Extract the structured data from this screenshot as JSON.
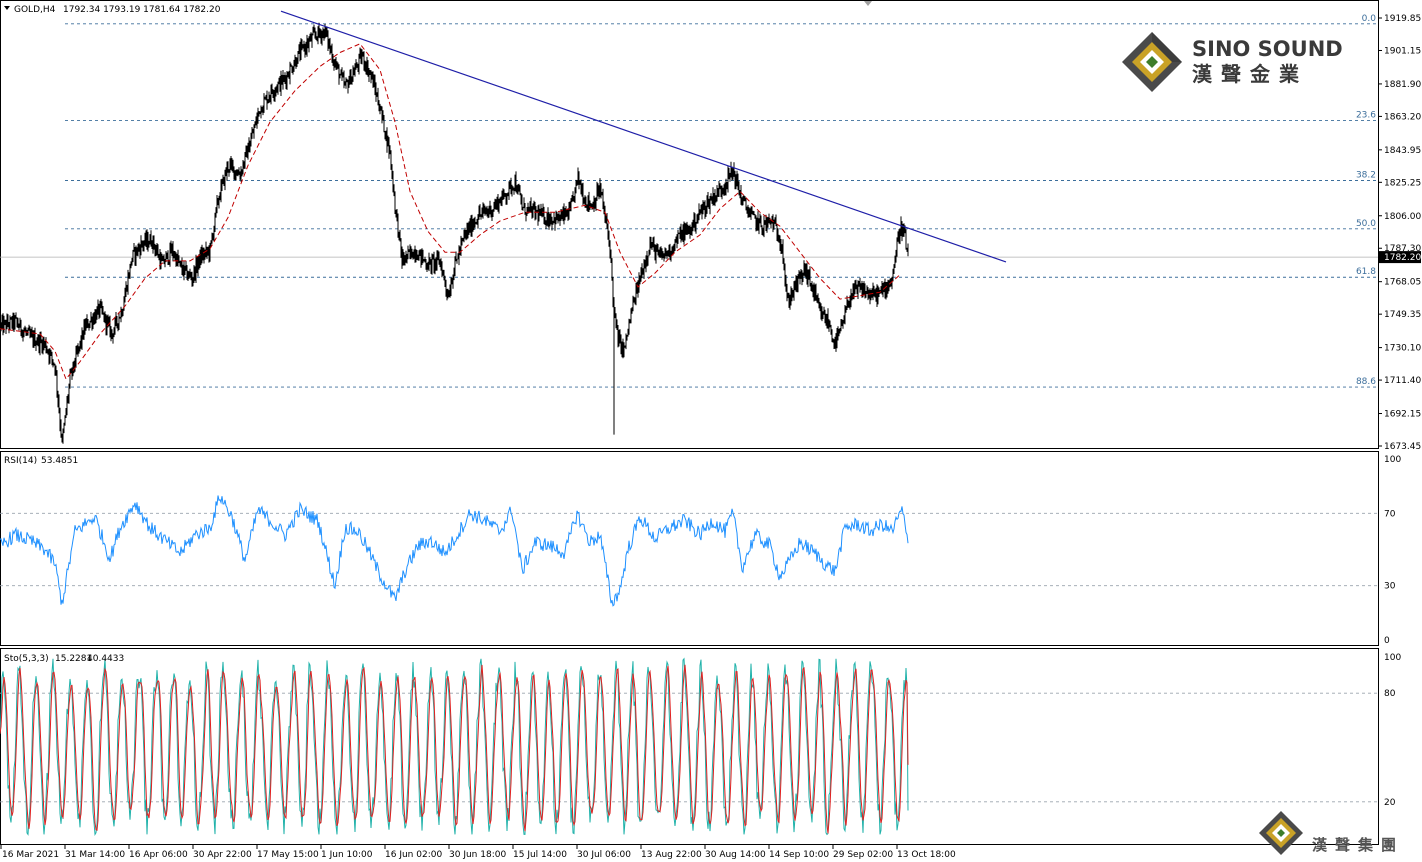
{
  "colors": {
    "price": "#000000",
    "ma": "#c00000",
    "trendline": "#1f1fa8",
    "fib": "#3c6e9b",
    "rsi": "#1e90ff",
    "sto_main": "#20b2aa",
    "sto_signal": "#e02020",
    "grid": "#9aa4ad",
    "current_price_bg": "#000000",
    "brand_gold": "#c9a227",
    "brand_green": "#3e7d2a"
  },
  "header": {
    "symbol": "GOLD,H4",
    "ohlc": "1792.34 1793.19 1781.64 1782.20"
  },
  "brand": {
    "name_en": "SINO SOUND",
    "name_zh": "漢聲金業",
    "footer_zh": "漢聲集團",
    "logo_icon": "diamond-logo-icon"
  },
  "chart_data": [
    {
      "type": "line",
      "name_label": "GOLD,H4",
      "ylim": [
        1673.45,
        1919.85
      ],
      "y_ticks": [
        "1919.85",
        "1901.15",
        "1881.90",
        "1863.20",
        "1843.95",
        "1825.25",
        "1806.00",
        "1787.30",
        "1768.05",
        "1749.35",
        "1730.10",
        "1711.40",
        "1692.15",
        "1673.45"
      ],
      "current_price": "1782.20",
      "x_ticks": [
        "16 Mar 2021",
        "31 Mar 14:00",
        "16 Apr 06:00",
        "30 Apr 22:00",
        "17 May 15:00",
        "1 Jun 10:00",
        "16 Jun 02:00",
        "30 Jun 18:00",
        "15 Jul 14:00",
        "30 Jul 06:00",
        "13 Aug 22:00",
        "30 Aug 14:00",
        "14 Sep 10:00",
        "29 Sep 02:00",
        "13 Oct 18:00"
      ],
      "fib_levels": [
        {
          "label": "0.0",
          "price": 1916.5
        },
        {
          "label": "23.6",
          "price": 1860.9
        },
        {
          "label": "38.2",
          "price": 1826.3
        },
        {
          "label": "50.0",
          "price": 1798.5
        },
        {
          "label": "61.8",
          "price": 1770.6
        },
        {
          "label": "88.6",
          "price": 1707.4
        }
      ],
      "trendline": {
        "start": {
          "bar": 281,
          "price": 1923.8
        },
        "end": {
          "bar": 1006,
          "price": 1779.4
        }
      },
      "series": [
        {
          "key": "close",
          "points": [
            [
              0,
              1742
            ],
            [
              15,
              1745
            ],
            [
              30,
              1736
            ],
            [
              45,
              1732
            ],
            [
              55,
              1720
            ],
            [
              62,
              1675
            ],
            [
              70,
              1712
            ],
            [
              85,
              1742
            ],
            [
              100,
              1752
            ],
            [
              112,
              1738
            ],
            [
              122,
              1752
            ],
            [
              132,
              1782
            ],
            [
              142,
              1790
            ],
            [
              152,
              1792
            ],
            [
              162,
              1778
            ],
            [
              172,
              1786
            ],
            [
              182,
              1775
            ],
            [
              192,
              1770
            ],
            [
              200,
              1782
            ],
            [
              210,
              1786
            ],
            [
              218,
              1815
            ],
            [
              228,
              1835
            ],
            [
              240,
              1830
            ],
            [
              250,
              1848
            ],
            [
              260,
              1868
            ],
            [
              272,
              1878
            ],
            [
              285,
              1885
            ],
            [
              300,
              1900
            ],
            [
              315,
              1910
            ],
            [
              325,
              1912
            ],
            [
              334,
              1895
            ],
            [
              345,
              1880
            ],
            [
              355,
              1890
            ],
            [
              362,
              1898
            ],
            [
              372,
              1885
            ],
            [
              380,
              1868
            ],
            [
              390,
              1842
            ],
            [
              395,
              1812
            ],
            [
              402,
              1780
            ],
            [
              415,
              1786
            ],
            [
              428,
              1778
            ],
            [
              440,
              1780
            ],
            [
              448,
              1760
            ],
            [
              455,
              1778
            ],
            [
              465,
              1795
            ],
            [
              478,
              1806
            ],
            [
              492,
              1810
            ],
            [
              505,
              1818
            ],
            [
              515,
              1826
            ],
            [
              523,
              1810
            ],
            [
              535,
              1808
            ],
            [
              545,
              1805
            ],
            [
              558,
              1804
            ],
            [
              570,
              1808
            ],
            [
              578,
              1828
            ],
            [
              585,
              1815
            ],
            [
              592,
              1812
            ],
            [
              600,
              1822
            ],
            [
              605,
              1805
            ],
            [
              610,
              1788
            ],
            [
              614,
              1750
            ],
            [
              618,
              1735
            ],
            [
              624,
              1728
            ],
            [
              632,
              1752
            ],
            [
              640,
              1770
            ],
            [
              650,
              1790
            ],
            [
              660,
              1782
            ],
            [
              670,
              1786
            ],
            [
              680,
              1795
            ],
            [
              690,
              1798
            ],
            [
              700,
              1808
            ],
            [
              710,
              1815
            ],
            [
              722,
              1822
            ],
            [
              733,
              1832
            ],
            [
              742,
              1815
            ],
            [
              752,
              1805
            ],
            [
              762,
              1800
            ],
            [
              772,
              1803
            ],
            [
              782,
              1790
            ],
            [
              787,
              1756
            ],
            [
              795,
              1765
            ],
            [
              805,
              1775
            ],
            [
              812,
              1765
            ],
            [
              820,
              1750
            ],
            [
              828,
              1745
            ],
            [
              835,
              1732
            ],
            [
              842,
              1742
            ],
            [
              850,
              1760
            ],
            [
              860,
              1764
            ],
            [
              872,
              1760
            ],
            [
              882,
              1762
            ],
            [
              892,
              1770
            ],
            [
              900,
              1800
            ],
            [
              904,
              1796
            ],
            [
              908,
              1782
            ]
          ]
        },
        {
          "key": "ma",
          "points": [
            [
              0,
              1741
            ],
            [
              40,
              1738
            ],
            [
              55,
              1728
            ],
            [
              66,
              1712
            ],
            [
              80,
              1722
            ],
            [
              100,
              1738
            ],
            [
              125,
              1754
            ],
            [
              145,
              1770
            ],
            [
              165,
              1780
            ],
            [
              190,
              1780
            ],
            [
              210,
              1787
            ],
            [
              228,
              1805
            ],
            [
              248,
              1835
            ],
            [
              270,
              1860
            ],
            [
              295,
              1878
            ],
            [
              320,
              1892
            ],
            [
              340,
              1900
            ],
            [
              360,
              1905
            ],
            [
              380,
              1890
            ],
            [
              395,
              1860
            ],
            [
              410,
              1820
            ],
            [
              428,
              1797
            ],
            [
              445,
              1785
            ],
            [
              460,
              1785
            ],
            [
              480,
              1795
            ],
            [
              500,
              1803
            ],
            [
              525,
              1808
            ],
            [
              555,
              1808
            ],
            [
              585,
              1812
            ],
            [
              605,
              1808
            ],
            [
              620,
              1785
            ],
            [
              638,
              1765
            ],
            [
              655,
              1773
            ],
            [
              675,
              1785
            ],
            [
              700,
              1795
            ],
            [
              720,
              1810
            ],
            [
              740,
              1820
            ],
            [
              760,
              1808
            ],
            [
              780,
              1800
            ],
            [
              800,
              1785
            ],
            [
              820,
              1770
            ],
            [
              840,
              1758
            ],
            [
              860,
              1760
            ],
            [
              880,
              1762
            ],
            [
              900,
              1772
            ]
          ]
        }
      ]
    },
    {
      "type": "line",
      "name_label": "RSI(14)",
      "current_value": "53.4851",
      "ylim": [
        0,
        100
      ],
      "y_ticks": [
        "100",
        "70",
        "30",
        "0"
      ],
      "levels": [
        70,
        30
      ],
      "series": [
        {
          "key": "rsi",
          "points": [
            [
              0,
              52
            ],
            [
              15,
              58
            ],
            [
              30,
              55
            ],
            [
              45,
              50
            ],
            [
              55,
              42
            ],
            [
              62,
              20
            ],
            [
              75,
              60
            ],
            [
              95,
              68
            ],
            [
              110,
              45
            ],
            [
              120,
              62
            ],
            [
              135,
              76
            ],
            [
              150,
              62
            ],
            [
              165,
              55
            ],
            [
              180,
              48
            ],
            [
              195,
              58
            ],
            [
              210,
              62
            ],
            [
              220,
              80
            ],
            [
              232,
              68
            ],
            [
              245,
              44
            ],
            [
              258,
              72
            ],
            [
              270,
              66
            ],
            [
              285,
              58
            ],
            [
              300,
              72
            ],
            [
              318,
              66
            ],
            [
              335,
              30
            ],
            [
              345,
              62
            ],
            [
              358,
              60
            ],
            [
              368,
              50
            ],
            [
              380,
              36
            ],
            [
              395,
              22
            ],
            [
              405,
              38
            ],
            [
              418,
              52
            ],
            [
              430,
              55
            ],
            [
              445,
              48
            ],
            [
              455,
              56
            ],
            [
              470,
              70
            ],
            [
              485,
              66
            ],
            [
              500,
              60
            ],
            [
              512,
              72
            ],
            [
              522,
              38
            ],
            [
              535,
              54
            ],
            [
              550,
              52
            ],
            [
              565,
              48
            ],
            [
              577,
              70
            ],
            [
              590,
              54
            ],
            [
              600,
              58
            ],
            [
              612,
              20
            ],
            [
              620,
              28
            ],
            [
              628,
              50
            ],
            [
              640,
              68
            ],
            [
              655,
              56
            ],
            [
              670,
              62
            ],
            [
              685,
              66
            ],
            [
              700,
              58
            ],
            [
              712,
              66
            ],
            [
              725,
              60
            ],
            [
              733,
              70
            ],
            [
              742,
              40
            ],
            [
              755,
              58
            ],
            [
              770,
              52
            ],
            [
              780,
              35
            ],
            [
              790,
              44
            ],
            [
              800,
              54
            ],
            [
              815,
              48
            ],
            [
              825,
              42
            ],
            [
              835,
              38
            ],
            [
              845,
              62
            ],
            [
              858,
              64
            ],
            [
              870,
              60
            ],
            [
              882,
              64
            ],
            [
              892,
              60
            ],
            [
              902,
              72
            ],
            [
              908,
              53.5
            ]
          ]
        }
      ]
    },
    {
      "type": "line",
      "name_label": "Sto(5,3,3)",
      "current_main": "15.2281",
      "current_signal": "40.4433",
      "ylim": [
        0,
        100
      ],
      "y_ticks": [
        "100",
        "80",
        "20"
      ],
      "levels": [
        80,
        20
      ],
      "series": [
        {
          "key": "main",
          "oscillating": true,
          "last": 15.2
        },
        {
          "key": "signal",
          "oscillating": true,
          "last": 40.4
        }
      ]
    }
  ]
}
